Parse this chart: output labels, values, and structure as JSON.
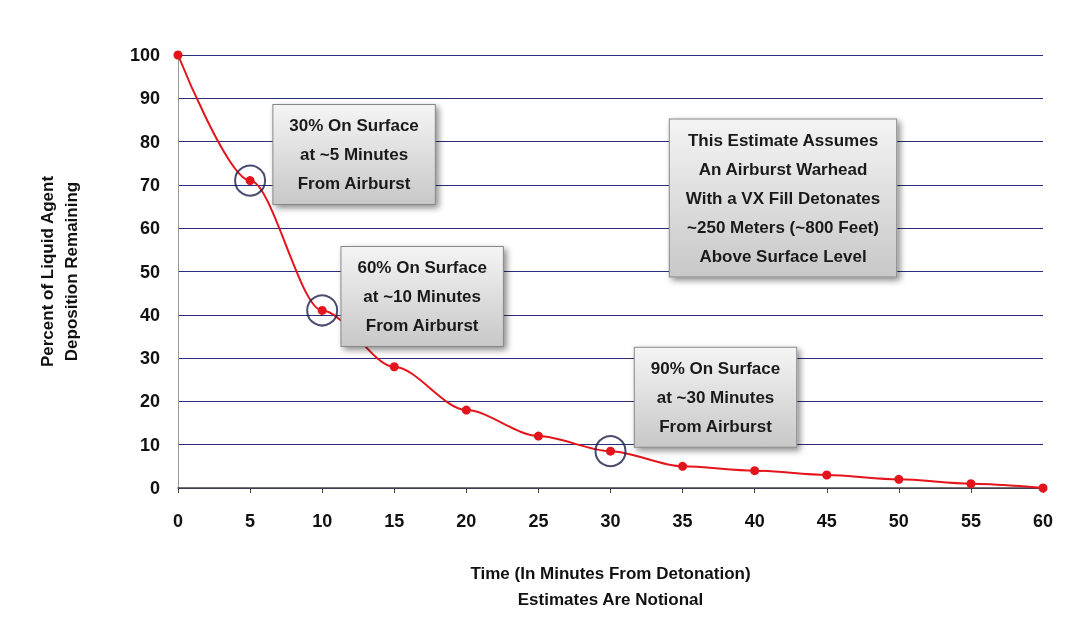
{
  "chart_data": {
    "type": "line",
    "xlabel": "Time (In Minutes From Detonation)\nEstimates Are Notional",
    "ylabel": "Percent of Liquid Agent\nDeposition Remaining",
    "x": [
      0,
      5,
      10,
      15,
      20,
      25,
      30,
      35,
      40,
      45,
      50,
      55,
      60
    ],
    "series": [
      {
        "color": "#e3141b",
        "values": [
          100,
          71,
          41,
          28,
          18,
          12,
          8.5,
          5,
          4,
          3,
          2,
          1,
          0
        ]
      }
    ],
    "xlim": [
      0,
      60
    ],
    "xticks": [
      0,
      5,
      10,
      15,
      20,
      25,
      30,
      35,
      40,
      45,
      50,
      55,
      60
    ],
    "ylim": [
      0,
      100
    ],
    "yticks": [
      0,
      10,
      20,
      30,
      40,
      50,
      60,
      70,
      80,
      90,
      100
    ],
    "grid": "y",
    "marker": "circle",
    "line_style": "solid",
    "annotations": [
      {
        "text": "30% On Surface\nat ~5 Minutes\nFrom Airburst",
        "x": 5,
        "y": 71
      },
      {
        "text": "60% On Surface\nat ~10 Minutes\nFrom Airburst",
        "x": 10,
        "y": 41
      },
      {
        "text": "90% On Surface\nat ~30 Minutes\nFrom Airburst",
        "x": 30,
        "y": 8.5
      },
      "This Estimate Assumes\nAn Airburst Warhead\nWith a VX Fill Detonates\n~250 Meters (~800 Feet)\nAbove Surface Level"
    ]
  }
}
